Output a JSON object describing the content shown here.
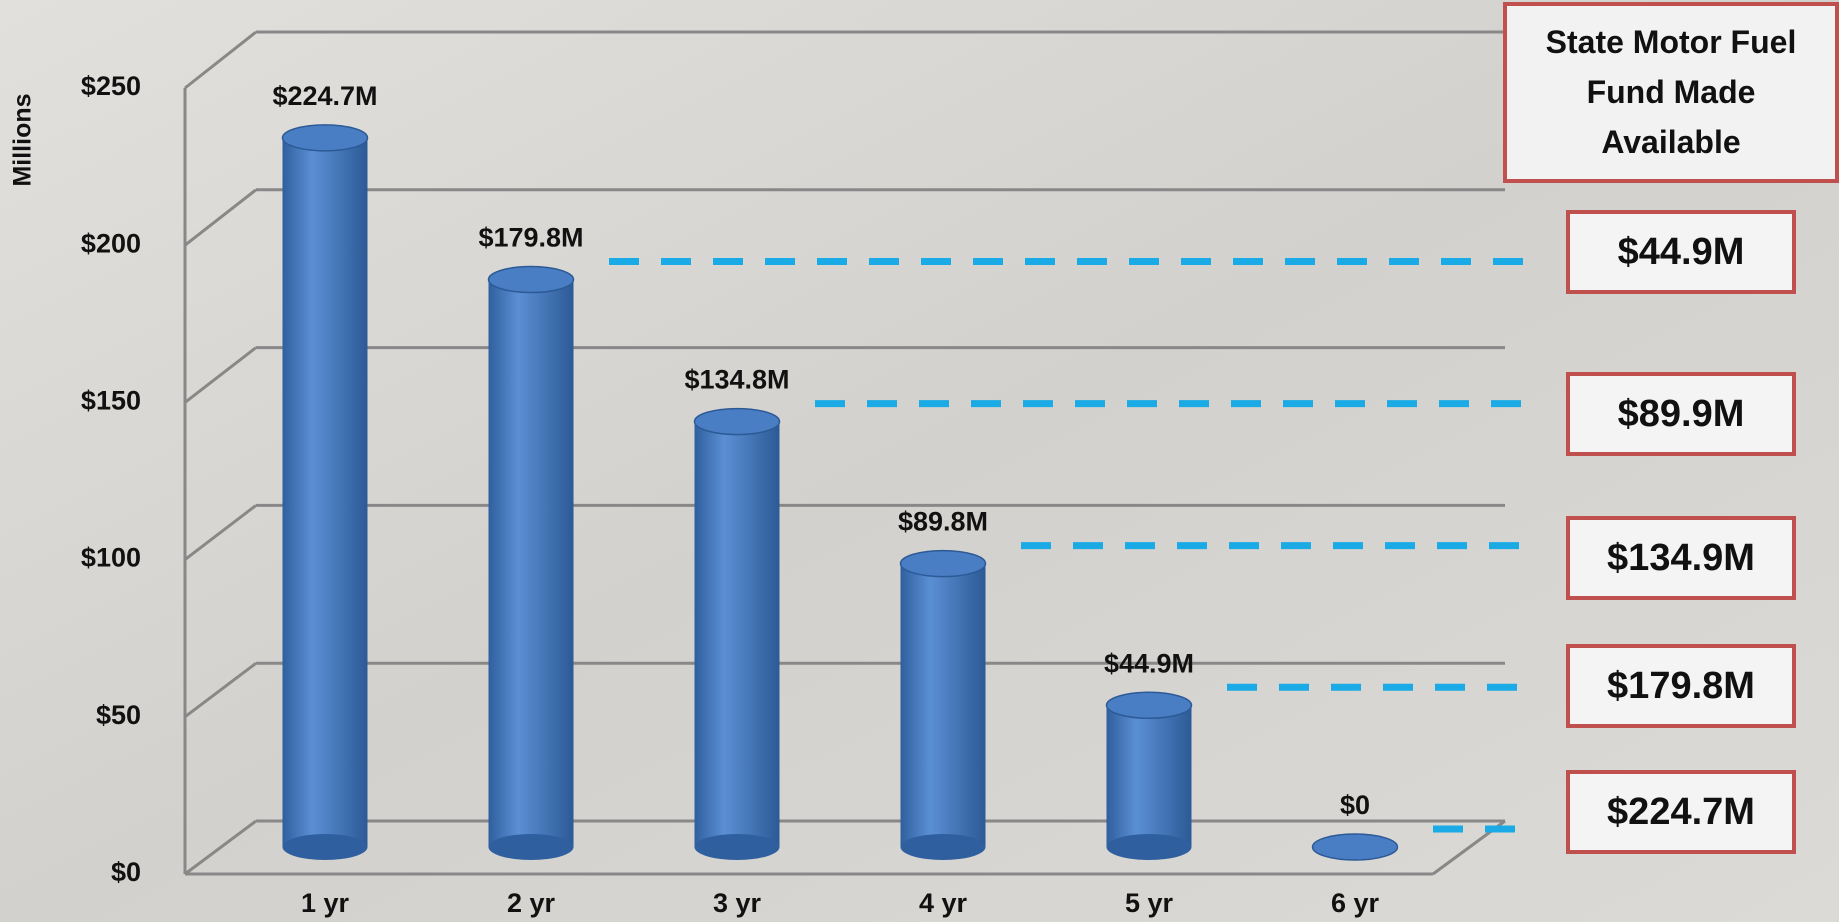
{
  "chart_data": {
    "type": "bar3d",
    "y_label": "Millions",
    "categories": [
      "1 yr",
      "2 yr",
      "3 yr",
      "4 yr",
      "5 yr",
      "6 yr"
    ],
    "values": [
      224.7,
      179.8,
      134.8,
      89.8,
      44.9,
      0
    ],
    "value_labels": [
      "$224.7M",
      "$179.8M",
      "$134.8M",
      "$89.8M",
      "$44.9M",
      "$0"
    ],
    "color": "#4a7ec4",
    "ylim": [
      0,
      250
    ],
    "yticks": [
      {
        "value": 0,
        "label": "$0"
      },
      {
        "value": 50,
        "label": "$50"
      },
      {
        "value": 100,
        "label": "$100"
      },
      {
        "value": 150,
        "label": "$150"
      },
      {
        "value": 200,
        "label": "$200"
      },
      {
        "value": 250,
        "label": "$250"
      }
    ],
    "grid": true,
    "side_title": "State Motor Fuel Fund Made Available",
    "side_boxes": [
      "$44.9M",
      "$89.9M",
      "$134.9M",
      "$179.8M",
      "$224.7M"
    ]
  }
}
